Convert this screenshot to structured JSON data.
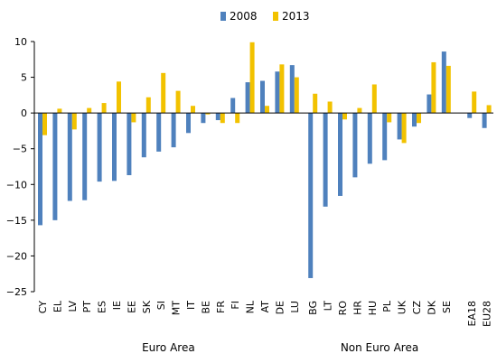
{
  "chart_data": {
    "type": "bar",
    "categories": [
      "CY",
      "EL",
      "LV",
      "PT",
      "ES",
      "IE",
      "EE",
      "SK",
      "SI",
      "MT",
      "IT",
      "BE",
      "FR",
      "FI",
      "NL",
      "AT",
      "DE",
      "LU",
      "BG",
      "LT",
      "RO",
      "HR",
      "HU",
      "PL",
      "UK",
      "CZ",
      "DK",
      "SE",
      "EA18",
      "EU28"
    ],
    "category_groups": [
      {
        "label": "Euro Area",
        "members": [
          "CY",
          "EL",
          "LV",
          "PT",
          "ES",
          "IE",
          "EE",
          "SK",
          "SI",
          "MT",
          "IT",
          "BE",
          "FR",
          "FI",
          "NL",
          "AT",
          "DE",
          "LU"
        ]
      },
      {
        "label": "Non Euro Area",
        "members": [
          "BG",
          "LT",
          "RO",
          "HR",
          "HU",
          "PL",
          "UK",
          "CZ",
          "DK",
          "SE"
        ]
      }
    ],
    "series": [
      {
        "name": "2008",
        "color": "#4F81BD",
        "values": [
          -15.7,
          -15.0,
          -12.3,
          -12.2,
          -9.6,
          -9.5,
          -8.7,
          -6.2,
          -5.4,
          -4.8,
          -2.8,
          -1.4,
          -1.0,
          2.1,
          4.3,
          4.5,
          5.8,
          6.7,
          -23.1,
          -13.1,
          -11.6,
          -9.0,
          -7.1,
          -6.6,
          -3.7,
          -1.9,
          2.6,
          8.6,
          -0.7,
          -2.1
        ]
      },
      {
        "name": "2013",
        "color": "#F2C200",
        "values": [
          -3.1,
          0.6,
          -2.3,
          0.7,
          1.4,
          4.4,
          -1.3,
          2.2,
          5.6,
          3.1,
          1.0,
          -0.2,
          -1.4,
          -1.4,
          9.9,
          1.0,
          6.8,
          5.0,
          2.7,
          1.6,
          -0.9,
          0.7,
          4.0,
          -1.3,
          -4.2,
          -1.4,
          7.1,
          6.6,
          3.0,
          1.1
        ]
      }
    ],
    "title": "",
    "xlabel": "",
    "ylabel": "",
    "ylim": [
      -25,
      10
    ],
    "yticks": [
      10,
      5,
      0,
      -5,
      -10,
      -15,
      -20,
      -25
    ],
    "grid": false,
    "legend_position": "top-center"
  }
}
